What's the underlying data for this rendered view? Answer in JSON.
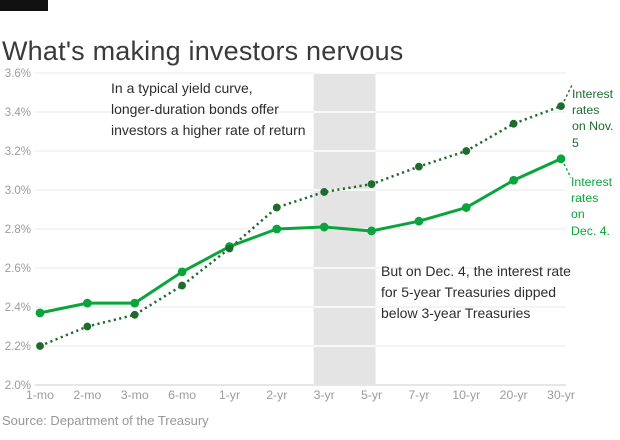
{
  "header": {
    "title": "What's making investors nervous"
  },
  "source": {
    "text": "Source: Department of the Treasury"
  },
  "annotations": {
    "typical_curve": "In a typical yield curve,\nlonger-duration bonds offer\ninvestors a higher rate of return",
    "inversion": "But on Dec. 4, the interest rate\nfor 5-year Treasuries dipped\nbelow 3-year Treasuries",
    "nov5_label": "Interest\nrates\non Nov.\n5",
    "dec4_label": "Interest\nrates\non\nDec. 4."
  },
  "colors": {
    "nov5_line": "#1e6b2e",
    "dec4_line": "#0aa43c",
    "band": "#e4e4e4",
    "gridline": "#e8e8e8",
    "axis_line": "#d8d8d8",
    "axis_text": "#9b9b9b",
    "title_text": "#3a3a3a",
    "annotation_text": "#2d2d2d",
    "source_text": "#979797",
    "brand_bar": "#111111"
  },
  "chart_data": {
    "type": "line",
    "title": "What's making investors nervous",
    "categories": [
      "1-mo",
      "2-mo",
      "3-mo",
      "6-mo",
      "1-yr",
      "2-yr",
      "3-yr",
      "5-yr",
      "7-yr",
      "10-yr",
      "20-yr",
      "30-yr"
    ],
    "series": [
      {
        "name": "Interest rates on Dec. 4.",
        "style": "solid",
        "color_key": "dec4_line",
        "values": [
          2.37,
          2.42,
          2.42,
          2.58,
          2.71,
          2.8,
          2.81,
          2.79,
          2.84,
          2.91,
          3.05,
          3.16
        ]
      },
      {
        "name": "Interest rates on Nov. 5",
        "style": "dotted",
        "color_key": "nov5_line",
        "values": [
          2.2,
          2.3,
          2.36,
          2.51,
          2.7,
          2.91,
          2.99,
          3.03,
          3.12,
          3.2,
          3.34,
          3.43
        ]
      }
    ],
    "y_ticks": [
      2.0,
      2.2,
      2.4,
      2.6,
      2.8,
      3.0,
      3.2,
      3.4,
      3.6
    ],
    "y_tick_labels": [
      "2.0%",
      "2.2%",
      "2.4%",
      "2.6%",
      "2.8%",
      "3.0%",
      "3.2%",
      "3.4%",
      "3.6%"
    ],
    "ylim": [
      2.0,
      3.6
    ],
    "grid": true,
    "highlight_band": {
      "from_category": "3-yr",
      "to_category": "5-yr"
    },
    "legend_position": "right-annotations",
    "xlabel": "",
    "ylabel": ""
  }
}
